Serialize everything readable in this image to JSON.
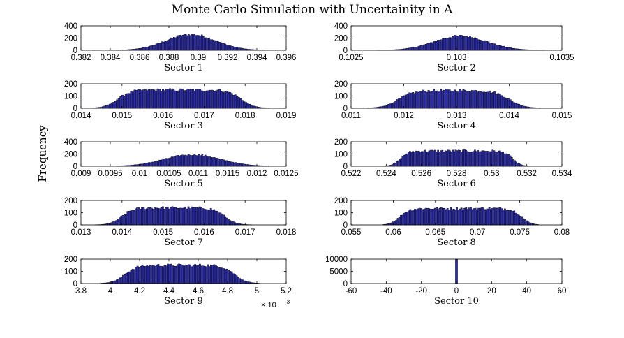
{
  "figure": {
    "title": "Monte Carlo Simulation with Uncertainity in A",
    "ylabel": "Frequency",
    "bar_color": "#2e2ea8",
    "edge_color": "#111111"
  },
  "chart_data": [
    {
      "type": "bar",
      "title": "",
      "xlabel": "Sector 1",
      "ylabel": "",
      "xlim": [
        0.382,
        0.396
      ],
      "ylim": [
        0,
        400
      ],
      "xticks": [
        "0.382",
        "0.384",
        "0.386",
        "0.388",
        "0.39",
        "0.392",
        "0.394",
        "0.396"
      ],
      "yticks": [
        "0",
        "200",
        "400"
      ],
      "shape": "gaussian",
      "center": 0.3895,
      "spread": 0.0017,
      "peak": 260,
      "support": [
        0.3845,
        0.3945
      ],
      "nbins": 100
    },
    {
      "type": "bar",
      "title": "",
      "xlabel": "Sector 2",
      "ylabel": "",
      "xlim": [
        0.1025,
        0.1035
      ],
      "ylim": [
        0,
        400
      ],
      "xticks": [
        "0.1025",
        "0.103",
        "0.1035"
      ],
      "yticks": [
        "0",
        "200",
        "400"
      ],
      "shape": "gaussian",
      "center": 0.10302,
      "spread": 0.000125,
      "peak": 235,
      "support": [
        0.10262,
        0.10342
      ],
      "nbins": 100
    },
    {
      "type": "bar",
      "title": "",
      "xlabel": "Sector 3",
      "ylabel": "",
      "xlim": [
        0.014,
        0.019
      ],
      "ylim": [
        0,
        200
      ],
      "xticks": [
        "0.014",
        "0.015",
        "0.016",
        "0.017",
        "0.018",
        "0.019"
      ],
      "yticks": [
        "0",
        "100",
        "200"
      ],
      "shape": "plateau",
      "lo": 0.0149,
      "hi": 0.0179,
      "ramp": 0.00035,
      "peak": 150,
      "support": [
        0.0143,
        0.0186
      ],
      "nbins": 100
    },
    {
      "type": "bar",
      "title": "",
      "xlabel": "Sector 4",
      "ylabel": "",
      "xlim": [
        0.011,
        0.015
      ],
      "ylim": [
        0,
        200
      ],
      "xticks": [
        "0.011",
        "0.012",
        "0.013",
        "0.014",
        "0.015"
      ],
      "yticks": [
        "0",
        "100",
        "200"
      ],
      "shape": "plateau",
      "lo": 0.0119,
      "hi": 0.014,
      "ramp": 0.00032,
      "peak": 145,
      "support": [
        0.0113,
        0.0146
      ],
      "nbins": 100
    },
    {
      "type": "bar",
      "title": "",
      "xlabel": "Sector 5",
      "ylabel": "",
      "xlim": [
        0.009,
        0.0125
      ],
      "ylim": [
        0,
        400
      ],
      "xticks": [
        "0.009",
        "0.0095",
        "0.01",
        "0.0105",
        "0.011",
        "0.0115",
        "0.012",
        "0.0125"
      ],
      "yticks": [
        "0",
        "200",
        "400"
      ],
      "shape": "gaussian",
      "center": 0.0109,
      "spread": 0.00048,
      "peak": 190,
      "support": [
        0.0096,
        0.0122
      ],
      "nbins": 100
    },
    {
      "type": "bar",
      "title": "",
      "xlabel": "Sector 6",
      "ylabel": "",
      "xlim": [
        0.522,
        0.534
      ],
      "ylim": [
        0,
        200
      ],
      "xticks": [
        "0.522",
        "0.524",
        "0.526",
        "0.528",
        "0.53",
        "0.532",
        "0.534"
      ],
      "yticks": [
        "0",
        "100",
        "200"
      ],
      "shape": "plateau",
      "lo": 0.5248,
      "hi": 0.5312,
      "ramp": 0.0005,
      "peak": 125,
      "support": [
        0.5238,
        0.5322
      ],
      "nbins": 100
    },
    {
      "type": "bar",
      "title": "",
      "xlabel": "Sector 7",
      "ylabel": "",
      "xlim": [
        0.013,
        0.018
      ],
      "ylim": [
        0,
        200
      ],
      "xticks": [
        "0.013",
        "0.014",
        "0.015",
        "0.016",
        "0.017",
        "0.018"
      ],
      "yticks": [
        "0",
        "100",
        "200"
      ],
      "shape": "plateau",
      "lo": 0.014,
      "hi": 0.0165,
      "ramp": 0.0003,
      "peak": 140,
      "support": [
        0.0133,
        0.0172
      ],
      "nbins": 100
    },
    {
      "type": "bar",
      "title": "",
      "xlabel": "Sector 8",
      "ylabel": "",
      "xlim": [
        0.055,
        0.08
      ],
      "ylim": [
        0,
        200
      ],
      "xticks": [
        "0.055",
        "0.06",
        "0.065",
        "0.07",
        "0.075",
        "0.08"
      ],
      "yticks": [
        "0",
        "100",
        "200"
      ],
      "shape": "plateau",
      "lo": 0.0608,
      "hi": 0.0752,
      "ramp": 0.0012,
      "peak": 135,
      "support": [
        0.0588,
        0.0772
      ],
      "nbins": 100
    },
    {
      "type": "bar",
      "title": "",
      "xlabel": "Sector 9",
      "ylabel": "",
      "xlim": [
        3.8,
        5.2
      ],
      "ylim": [
        0,
        200
      ],
      "xticks": [
        "3.8",
        "4",
        "4.2",
        "4.4",
        "4.6",
        "4.8",
        "5",
        "5.2"
      ],
      "yticks": [
        "0",
        "100",
        "200"
      ],
      "xscale_note": {
        "base": "× 10",
        "exponent": "-3"
      },
      "shape": "plateau",
      "lo": 4.1,
      "hi": 4.85,
      "ramp": 0.09,
      "peak": 150,
      "support": [
        3.93,
        5.02
      ],
      "nbins": 100
    },
    {
      "type": "bar",
      "title": "",
      "xlabel": "Sector 10",
      "ylabel": "",
      "xlim": [
        -60,
        60
      ],
      "ylim": [
        0,
        10000
      ],
      "xticks": [
        "-60",
        "-40",
        "-20",
        "0",
        "20",
        "40",
        "60"
      ],
      "yticks": [
        "0",
        "5000",
        "10000"
      ],
      "shape": "spike",
      "x": 0,
      "value": 10000,
      "width": 1.2
    }
  ]
}
